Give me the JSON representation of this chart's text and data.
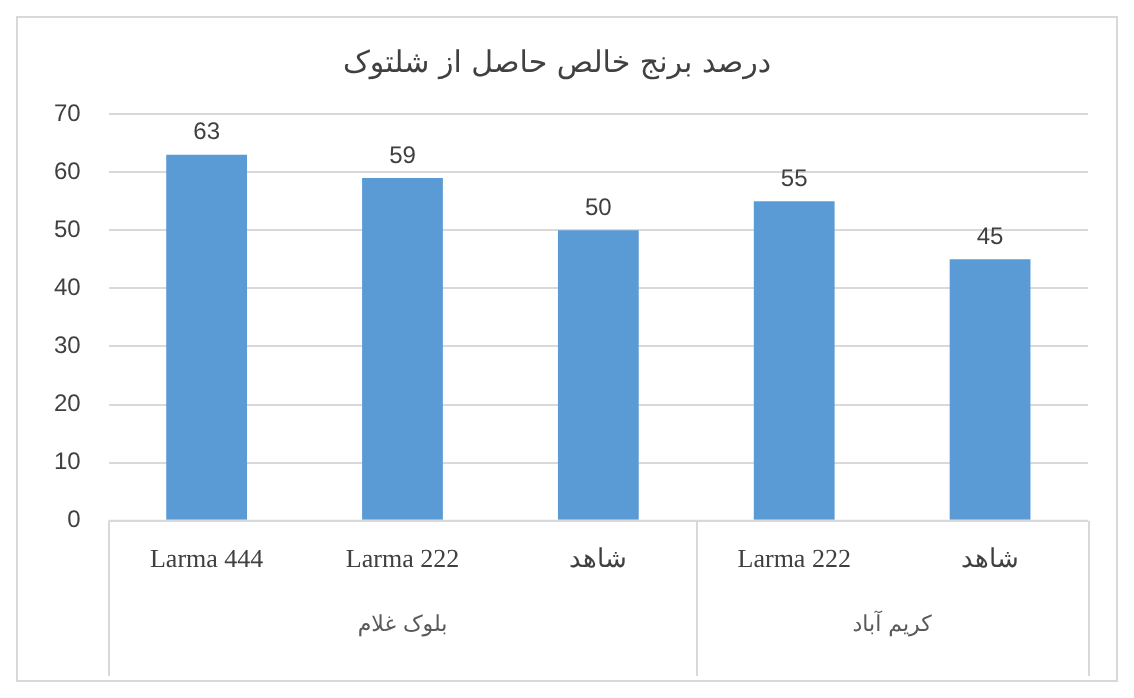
{
  "chart_data": {
    "type": "bar",
    "title": "درصد برنج خالص حاصل از شلتوک",
    "categories": [
      "Larma 444",
      "Larma 222",
      "شاهد",
      "Larma 222",
      "شاهد"
    ],
    "values": [
      63,
      59,
      50,
      55,
      45
    ],
    "color": "#5b9bd5",
    "ylim": [
      0,
      70
    ],
    "yticks": [
      0,
      10,
      20,
      30,
      40,
      50,
      60,
      70
    ],
    "grid": "y",
    "legend": false,
    "data_labels": true,
    "annotations": [
      "بلوک غلام",
      "کریم آباد"
    ]
  }
}
